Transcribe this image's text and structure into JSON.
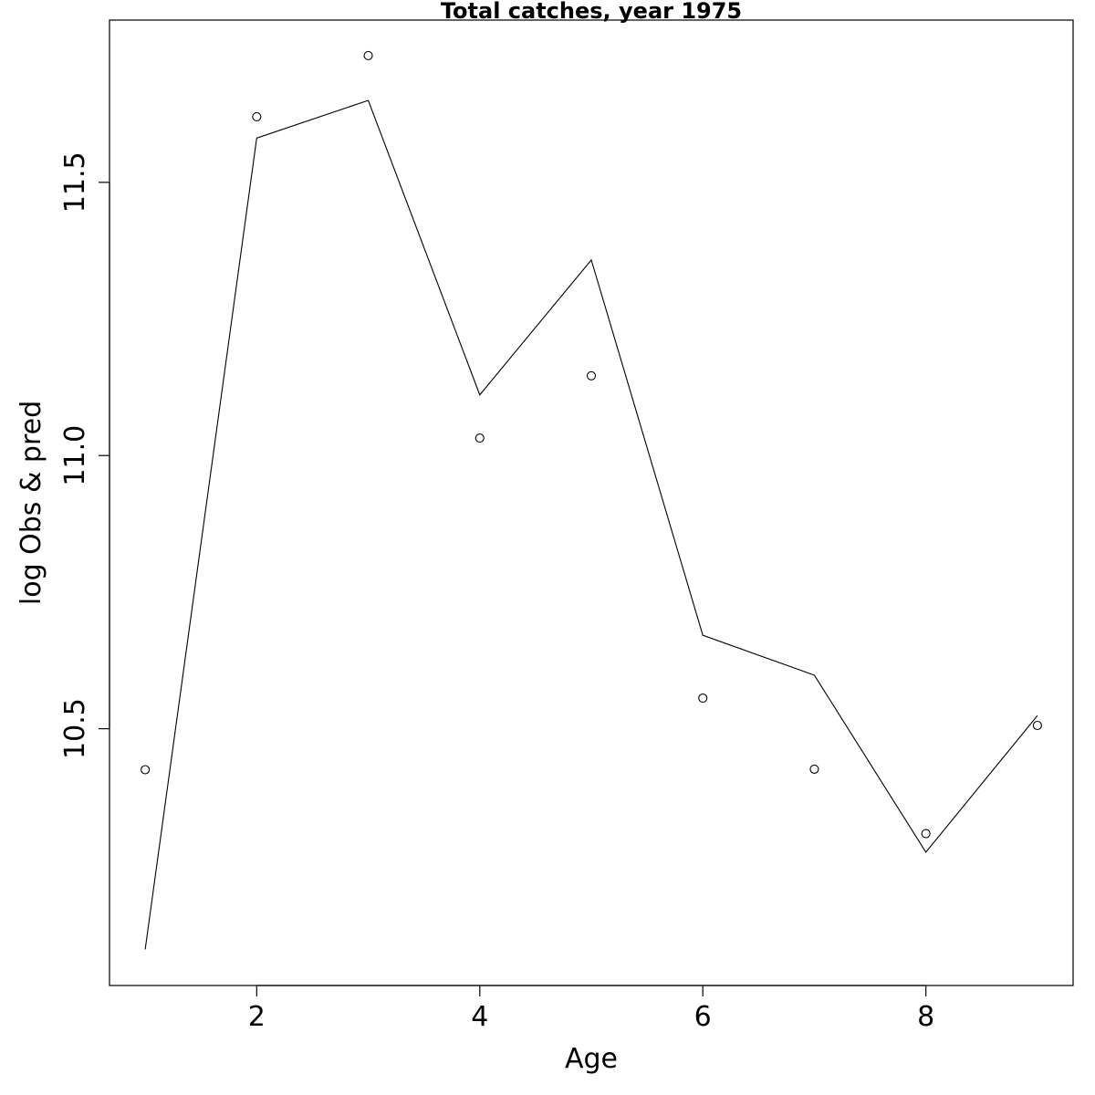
{
  "chart_data": {
    "type": "scatter",
    "title": "Total catches, year 1975",
    "xlabel": "Age",
    "ylabel": "log Obs & pred",
    "xlim": [
      0.68,
      9.32
    ],
    "ylim": [
      10.03,
      11.797
    ],
    "x_ticks": [
      2,
      4,
      6,
      8
    ],
    "y_ticks": [
      10.5,
      11.0,
      11.5
    ],
    "x_tick_labels": [
      "2",
      "4",
      "6",
      "8"
    ],
    "y_tick_labels": [
      "10.5",
      "11.0",
      "11.5"
    ],
    "grid": false,
    "series": [
      {
        "style": "points",
        "x": [
          1,
          2,
          3,
          4,
          5,
          6,
          7,
          8,
          9
        ],
        "y": [
          10.425,
          11.62,
          11.732,
          11.032,
          11.146,
          10.556,
          10.426,
          10.308,
          10.506
        ]
      },
      {
        "style": "line",
        "x": [
          1,
          2,
          3,
          4,
          5,
          6,
          7,
          8,
          9
        ],
        "y": [
          10.096,
          11.581,
          11.65,
          11.111,
          11.358,
          10.671,
          10.598,
          10.274,
          10.524
        ]
      }
    ]
  }
}
